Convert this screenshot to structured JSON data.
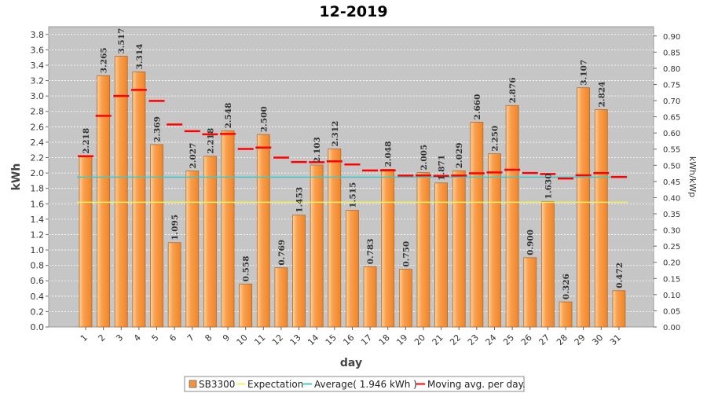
{
  "chart_data": {
    "type": "bar",
    "title": "12-2019",
    "xlabel": "day",
    "ylabel": "kWh",
    "y2label": "kWh/kWp",
    "ylim": [
      0,
      3.9
    ],
    "y2lim": [
      0,
      0.9286
    ],
    "yticks": [
      "0.0",
      "0.2",
      "0.4",
      "0.6",
      "0.8",
      "1.0",
      "1.2",
      "1.4",
      "1.6",
      "1.8",
      "2.0",
      "2.2",
      "2.4",
      "2.6",
      "2.8",
      "3.0",
      "3.2",
      "3.4",
      "3.6",
      "3.8"
    ],
    "y2ticks": [
      "0.00",
      "0.05",
      "0.10",
      "0.15",
      "0.20",
      "0.25",
      "0.30",
      "0.35",
      "0.40",
      "0.45",
      "0.50",
      "0.55",
      "0.60",
      "0.65",
      "0.70",
      "0.75",
      "0.80",
      "0.85",
      "0.90"
    ],
    "categories": [
      "1",
      "2",
      "3",
      "4",
      "5",
      "6",
      "7",
      "8",
      "9",
      "10",
      "11",
      "12",
      "13",
      "14",
      "15",
      "16",
      "17",
      "18",
      "19",
      "20",
      "21",
      "22",
      "23",
      "24",
      "25",
      "26",
      "27",
      "28",
      "29",
      "30",
      "31"
    ],
    "series": [
      {
        "name": "SB3300",
        "color": "#f5923e",
        "values": [
          2.218,
          3.265,
          3.517,
          3.314,
          2.369,
          1.095,
          2.027,
          2.218,
          2.548,
          0.558,
          2.5,
          0.769,
          1.453,
          2.103,
          2.312,
          1.515,
          0.783,
          2.048,
          0.75,
          2.005,
          1.871,
          2.029,
          2.66,
          2.25,
          2.876,
          0.9,
          1.63,
          0.326,
          3.107,
          2.824,
          0.472
        ],
        "labels": [
          "2.218",
          "3.265",
          "3.517",
          "3.314",
          "2.369",
          "1.095",
          "2.027",
          "2.218",
          "2.548",
          "0.558",
          "2.500",
          "0.769",
          "1.453",
          "2.103",
          "2.312",
          "1.515",
          "0.783",
          "2.048",
          "0.750",
          "2.005",
          "1.871",
          "2.029",
          "2.660",
          "2.250",
          "2.876",
          "0.900",
          "1.630",
          "0.326",
          "3.107",
          "2.824",
          "0.472"
        ]
      },
      {
        "name": "Expectation",
        "color": "#f0f060",
        "value": 1.62
      },
      {
        "name": "Average( 1.946 kWh )",
        "color": "#40c8c8",
        "value": 1.946
      },
      {
        "name": "Moving avg. per day.",
        "color": "#ff0000",
        "values": [
          2.218,
          2.742,
          3.0,
          3.079,
          2.937,
          2.63,
          2.544,
          2.503,
          2.508,
          2.313,
          2.33,
          2.2,
          2.143,
          2.14,
          2.151,
          2.111,
          2.033,
          2.034,
          1.966,
          1.968,
          1.963,
          1.966,
          1.996,
          2.007,
          2.042,
          2.0,
          1.987,
          1.928,
          1.97,
          1.998,
          1.949
        ]
      }
    ],
    "legend": {
      "position": "bottom",
      "items": [
        "SB3300",
        "Expectation",
        "Average( 1.946 kWh )",
        "Moving avg. per day."
      ]
    }
  }
}
